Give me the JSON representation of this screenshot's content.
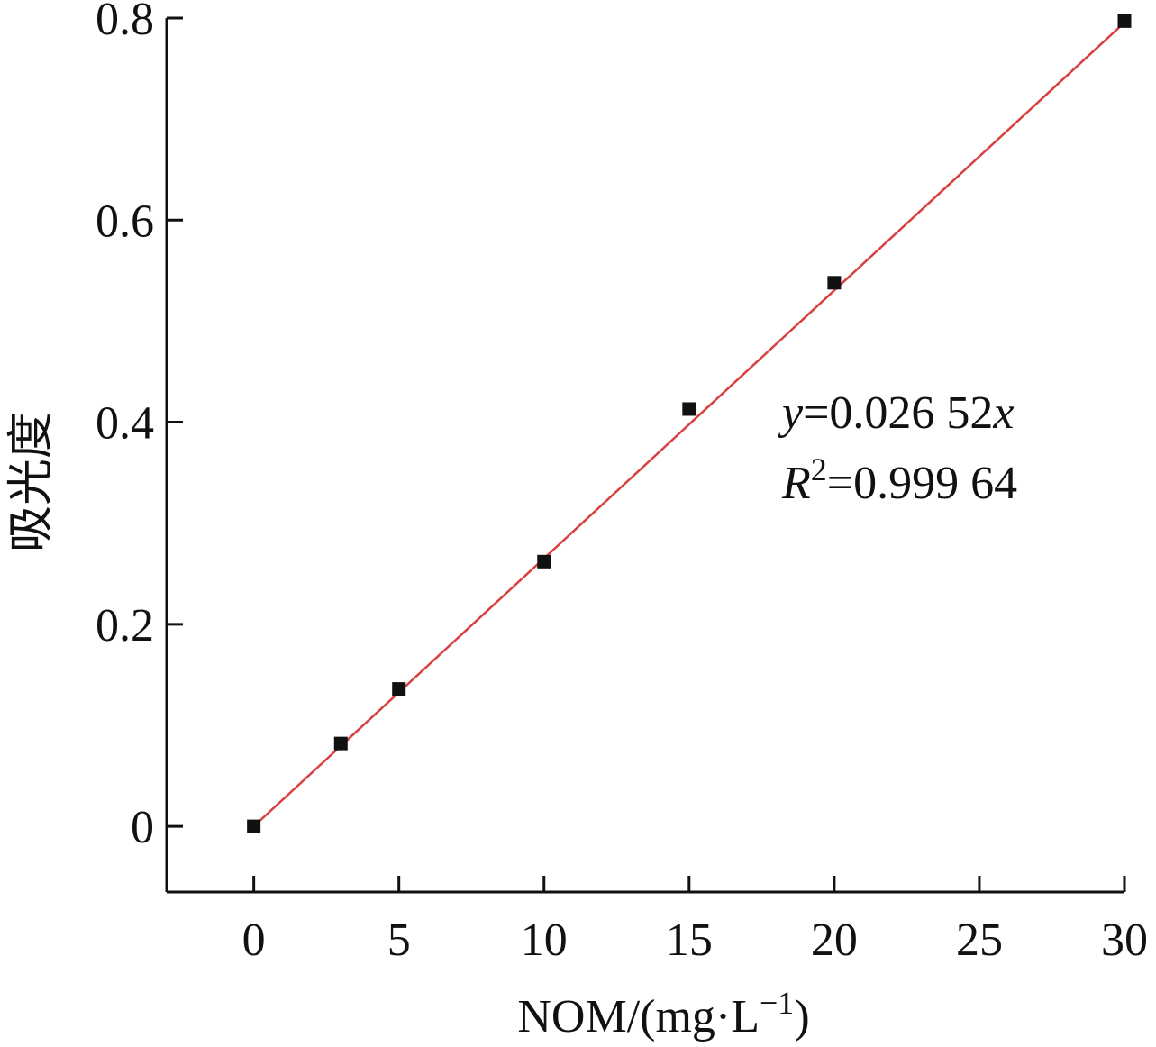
{
  "chart_data": {
    "type": "scatter",
    "title": "",
    "xlabel": "NOM/(mg·L",
    "xlabel_sup": "−1",
    "xlabel_close": ")",
    "ylabel": "吸光度",
    "xlim": [
      -3,
      30
    ],
    "ylim": [
      -0.065,
      0.8
    ],
    "xticks": [
      0,
      5,
      10,
      15,
      20,
      25,
      30
    ],
    "xtick_labels": [
      "0",
      "5",
      "10",
      "15",
      "20",
      "25",
      "30"
    ],
    "yticks": [
      0,
      0.2,
      0.4,
      0.6,
      0.8
    ],
    "ytick_labels": [
      "0",
      "0.2",
      "0.4",
      "0.6",
      "0.8"
    ],
    "grid": false,
    "series": [
      {
        "x": [
          0,
          3,
          5,
          10,
          15,
          20,
          30
        ],
        "y": [
          0.0,
          0.082,
          0.136,
          0.262,
          0.413,
          0.538,
          0.797
        ],
        "marker": "square",
        "color": "#111111"
      }
    ],
    "fit": {
      "slope": 0.02652,
      "x_range": [
        0,
        30
      ],
      "color": "#d94040"
    },
    "annotation": {
      "eq_var_y": "y",
      "eq_middle": "=0.026 52",
      "eq_var_x": "x",
      "r2_var": "R",
      "r2_sup": "2",
      "r2_value": "=0.999 64"
    }
  }
}
